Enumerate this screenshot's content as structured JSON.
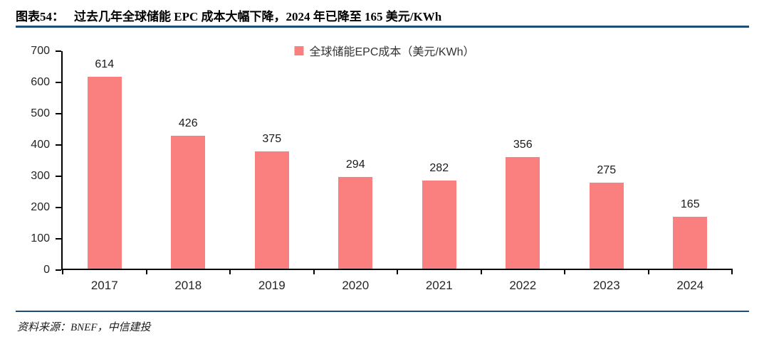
{
  "header": {
    "figure_label": "图表54：",
    "title": "过去几年全球储能 EPC 成本大幅下降，2024 年已降至 165 美元/KWh"
  },
  "chart_data": {
    "type": "bar",
    "categories": [
      "2017",
      "2018",
      "2019",
      "2020",
      "2021",
      "2022",
      "2023",
      "2024"
    ],
    "series": [
      {
        "name": "全球储能EPC成本（美元/KWh）",
        "values": [
          614,
          426,
          375,
          294,
          282,
          356,
          275,
          165
        ]
      }
    ],
    "title": "",
    "xlabel": "",
    "ylabel": "",
    "ylim": [
      0,
      700
    ],
    "yticks": [
      0,
      100,
      200,
      300,
      400,
      500,
      600,
      700
    ],
    "grid": false,
    "legend_position": "top-center",
    "bar_color": "#FA8080"
  },
  "footer": {
    "source": "资料来源：BNEF，中信建投"
  },
  "colors": {
    "bar": "#FA8080",
    "rule": "#1F4E79",
    "axis": "#000000"
  }
}
